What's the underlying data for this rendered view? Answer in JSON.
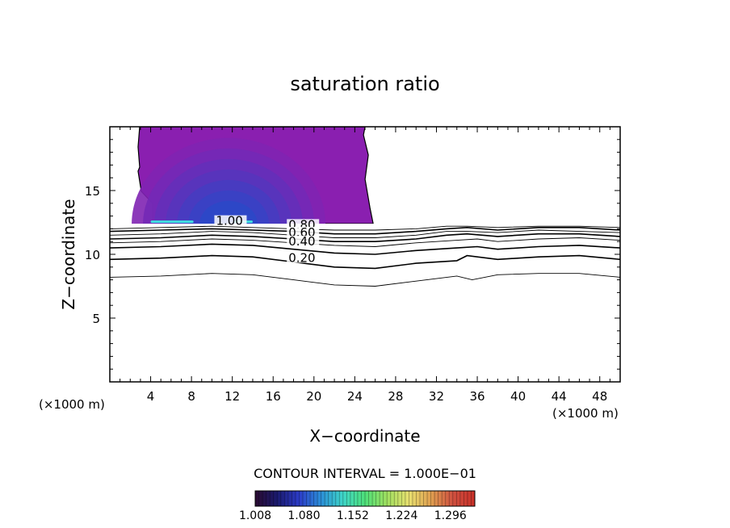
{
  "chart_data": {
    "type": "contour",
    "title": "saturation ratio",
    "xlabel": "X−coordinate",
    "ylabel": "Z−coordinate",
    "x_unit_left": "(×1000 m)",
    "x_unit_right": "(×1000 m)",
    "xlim": [
      0,
      50
    ],
    "ylim": [
      0,
      20
    ],
    "x_ticks": [
      4,
      8,
      12,
      16,
      20,
      24,
      28,
      32,
      36,
      40,
      44,
      48
    ],
    "y_ticks": [
      5,
      10,
      15
    ],
    "contour_interval_text": "CONTOUR INTERVAL = 1.000E−01",
    "contour_labels": [
      {
        "text": "1.00",
        "x": 10.4,
        "z": 12.3
      },
      {
        "text": "0.80",
        "x": 17.5,
        "z": 12.0
      },
      {
        "text": "0.60",
        "x": 17.5,
        "z": 11.4
      },
      {
        "text": "0.40",
        "x": 17.5,
        "z": 10.7
      },
      {
        "text": "0.20",
        "x": 17.5,
        "z": 9.4
      }
    ],
    "contour_lines": [
      {
        "level": "0.1",
        "x": [
          0,
          5,
          10,
          14,
          18,
          22,
          26,
          30,
          34,
          35.5,
          38,
          42,
          46,
          50
        ],
        "z": [
          8.2,
          8.3,
          8.5,
          8.4,
          8.0,
          7.6,
          7.5,
          7.9,
          8.3,
          8.0,
          8.4,
          8.5,
          8.5,
          8.2
        ]
      },
      {
        "level": "0.2",
        "x": [
          0,
          5,
          10,
          14,
          18,
          22,
          26,
          30,
          34,
          35,
          38,
          42,
          46,
          50
        ],
        "z": [
          9.6,
          9.7,
          9.9,
          9.8,
          9.4,
          9.0,
          8.9,
          9.3,
          9.5,
          9.9,
          9.6,
          9.8,
          9.9,
          9.6
        ]
      },
      {
        "level": "0.4",
        "x": [
          0,
          5,
          10,
          14,
          18,
          22,
          26,
          30,
          34,
          36,
          38,
          42,
          46,
          50
        ],
        "z": [
          10.5,
          10.6,
          10.8,
          10.7,
          10.4,
          10.1,
          10.0,
          10.3,
          10.5,
          10.6,
          10.4,
          10.6,
          10.7,
          10.5
        ]
      },
      {
        "level": "0.5",
        "x": [
          0,
          5,
          10,
          14,
          18,
          22,
          26,
          30,
          34,
          36,
          38,
          42,
          46,
          50
        ],
        "z": [
          10.9,
          11.0,
          11.2,
          11.1,
          10.9,
          10.7,
          10.6,
          10.9,
          11.1,
          11.2,
          11.0,
          11.2,
          11.3,
          11.1
        ]
      },
      {
        "level": "0.6",
        "x": [
          0,
          5,
          10,
          14,
          18,
          22,
          26,
          30,
          33,
          35,
          38,
          42,
          46,
          50
        ],
        "z": [
          11.2,
          11.3,
          11.5,
          11.4,
          11.2,
          11.0,
          11.0,
          11.2,
          11.5,
          11.6,
          11.4,
          11.6,
          11.6,
          11.4
        ]
      },
      {
        "level": "0.7",
        "x": [
          0,
          5,
          10,
          14,
          18,
          22,
          26,
          30,
          33,
          35,
          38,
          42,
          46,
          50
        ],
        "z": [
          11.5,
          11.6,
          11.8,
          11.7,
          11.5,
          11.3,
          11.3,
          11.5,
          11.8,
          11.8,
          11.7,
          11.9,
          11.8,
          11.7
        ]
      },
      {
        "level": "0.8",
        "x": [
          0,
          5,
          10,
          14,
          18,
          22,
          26,
          30,
          33,
          35,
          38,
          42,
          46,
          50
        ],
        "z": [
          11.8,
          11.9,
          12.0,
          11.9,
          11.8,
          11.6,
          11.6,
          11.8,
          12.0,
          12.1,
          11.9,
          12.1,
          12.1,
          11.9
        ]
      },
      {
        "level": "0.9",
        "x": [
          0,
          5,
          10,
          14,
          18,
          22,
          26,
          30,
          33,
          35,
          38,
          42,
          46,
          50
        ],
        "z": [
          12.0,
          12.1,
          12.2,
          12.1,
          12.0,
          11.9,
          11.9,
          12.0,
          12.2,
          12.2,
          12.1,
          12.2,
          12.2,
          12.1
        ]
      }
    ],
    "supersaturated_region": {
      "x_left": 1.5,
      "x_right": 25.8,
      "z_bottom": 12.4,
      "z_top": 20,
      "core_x": 11.0,
      "core_z": 12.6
    },
    "colorbar": {
      "min": 1.008,
      "max": 1.332,
      "tick_labels": [
        "1.008",
        "1.080",
        "1.152",
        "1.224",
        "1.296"
      ],
      "colors": [
        "#2a0a30",
        "#1a1a6e",
        "#2c3cc8",
        "#2b8fd8",
        "#3fd6c8",
        "#4ee07a",
        "#a0e060",
        "#e8e070",
        "#e0a050",
        "#d05040",
        "#c83028"
      ]
    },
    "fill_colors": [
      "#8a1fb0",
      "#7f24b3",
      "#7329b6",
      "#652fb9",
      "#5735bc",
      "#473cc0",
      "#3942c4",
      "#2c48c8"
    ],
    "core_color": "#40e0e0"
  }
}
